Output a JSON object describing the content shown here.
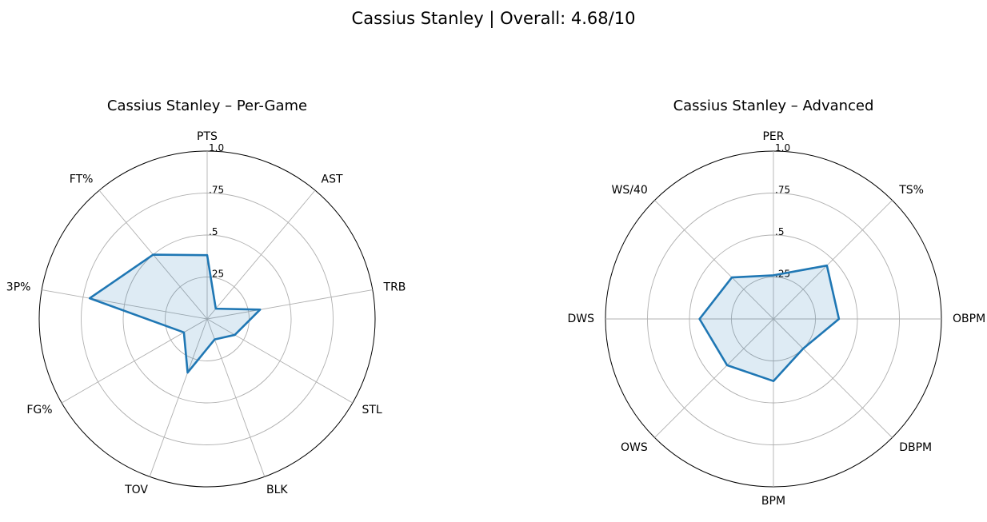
{
  "figure": {
    "title": "Cassius Stanley | Overall: 4.68/10"
  },
  "chart_data": [
    {
      "type": "radar",
      "title": "Cassius Stanley – Per-Game",
      "categories": [
        "PTS",
        "AST",
        "TRB",
        "STL",
        "BLK",
        "TOV",
        "FG%",
        "3P%",
        "FT%"
      ],
      "values": [
        0.38,
        0.08,
        0.32,
        0.19,
        0.13,
        0.34,
        0.16,
        0.71,
        0.5
      ],
      "rlim": [
        0,
        1
      ],
      "rticks": [
        0.25,
        0.5,
        0.75,
        1.0
      ],
      "rtick_labels": [
        ".25",
        ".5",
        ".75",
        "1.0"
      ],
      "color": "#1f77b4",
      "grid": true
    },
    {
      "type": "radar",
      "title": "Cassius Stanley – Advanced",
      "categories": [
        "PER",
        "TS%",
        "OBPM",
        "DBPM",
        "BPM",
        "OWS",
        "DWS",
        "WS/40"
      ],
      "values": [
        0.26,
        0.45,
        0.39,
        0.25,
        0.37,
        0.39,
        0.44,
        0.35
      ],
      "rlim": [
        0,
        1
      ],
      "rticks": [
        0.25,
        0.5,
        0.75,
        1.0
      ],
      "rtick_labels": [
        ".25",
        ".5",
        ".75",
        "1.0"
      ],
      "color": "#1f77b4",
      "grid": true
    }
  ]
}
